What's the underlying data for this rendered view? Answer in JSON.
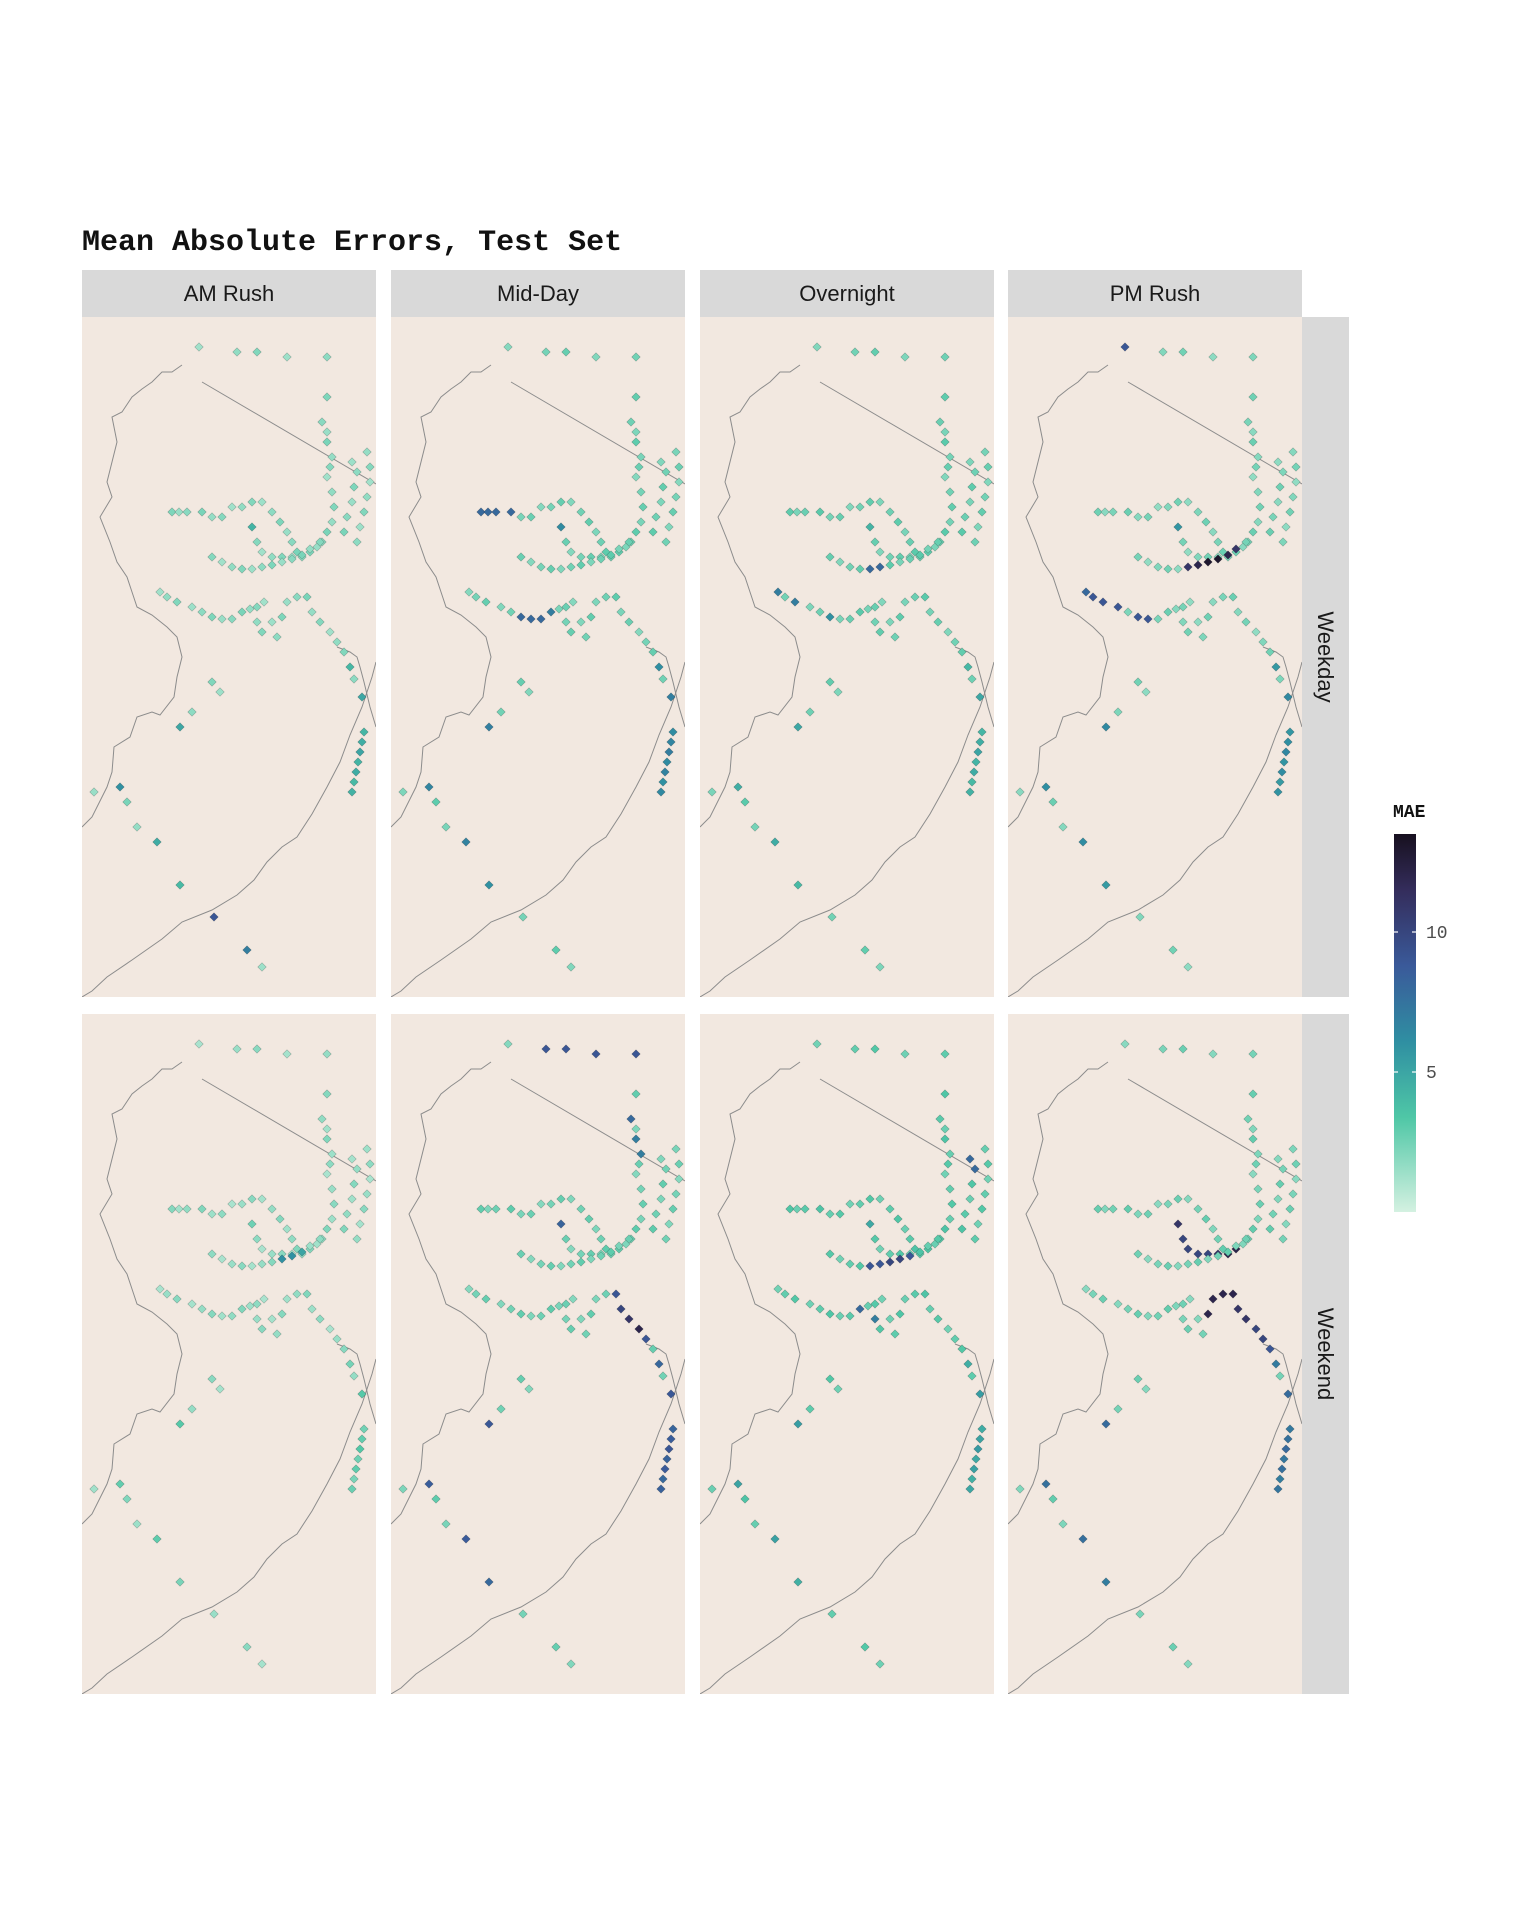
{
  "chart_data": {
    "type": "scatter",
    "title": "Mean Absolute Errors, Test Set",
    "facet_columns": [
      "AM Rush",
      "Mid-Day",
      "Overnight",
      "PM Rush"
    ],
    "facet_rows": [
      "Weekday",
      "Weekend"
    ],
    "legend": {
      "title": "MAE",
      "position": "right",
      "ticks": [
        {
          "label": "5",
          "value": 5
        },
        {
          "label": "10",
          "value": 10
        }
      ],
      "range": [
        0,
        13.5
      ],
      "colors": [
        "#d4f1e1",
        "#4fc7a6",
        "#2f8fa2",
        "#3a5a9a",
        "#342d5c",
        "#17101f"
      ]
    },
    "panel_fill": "#f2e8e0",
    "strip_fill": "#d9d9d9",
    "station_error_level": {
      "Weekday": {
        "AM Rush": "low",
        "Mid-Day": "medium on western and coastal lines",
        "Overnight": "low to medium",
        "PM Rush": "high on central line"
      },
      "Weekend": {
        "AM Rush": "low",
        "Mid-Day": "high on coastal line",
        "Overnight": "medium on central line",
        "PM Rush": "high on central and coastal lines"
      }
    }
  }
}
